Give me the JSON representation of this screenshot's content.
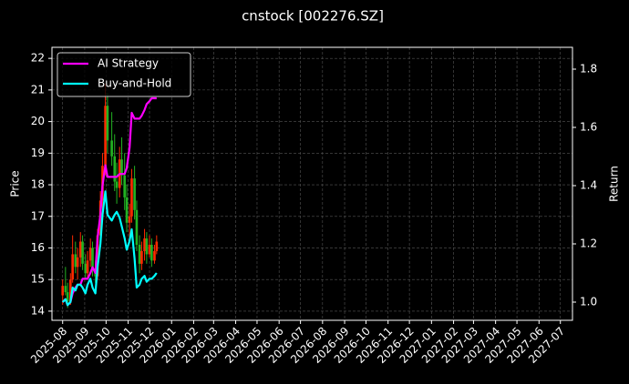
{
  "chart_data": {
    "type": "candlestick",
    "title": "cnstock [002276.SZ]",
    "y_label": "Price",
    "y2_label": "Return",
    "up_color": "#ff2a00",
    "down_color": "#22b322",
    "grid": true,
    "legend": "upper left",
    "x": [
      "2025-08-01",
      "2025-08-05",
      "2025-08-08",
      "2025-08-12",
      "2025-08-15",
      "2025-08-19",
      "2025-08-22",
      "2025-08-26",
      "2025-08-29",
      "2025-09-02",
      "2025-09-05",
      "2025-09-09",
      "2025-09-12",
      "2025-09-16",
      "2025-09-19",
      "2025-09-23",
      "2025-09-26",
      "2025-09-30",
      "2025-10-03",
      "2025-10-09",
      "2025-10-13",
      "2025-10-16",
      "2025-10-20",
      "2025-10-23",
      "2025-10-27",
      "2025-10-30",
      "2025-11-03",
      "2025-11-06",
      "2025-11-10",
      "2025-11-13",
      "2025-11-17",
      "2025-11-20",
      "2025-11-24",
      "2025-11-27",
      "2025-12-01",
      "2025-12-04",
      "2025-12-08",
      "2025-12-11"
    ],
    "open": [
      14.5,
      14.8,
      14.6,
      14.3,
      15.0,
      15.8,
      15.4,
      15.7,
      16.2,
      15.5,
      15.2,
      15.6,
      16.0,
      15.3,
      15.1,
      16.4,
      17.5,
      18.6,
      20.5,
      19.4,
      18.9,
      18.1,
      17.9,
      18.8,
      18.3,
      17.6,
      16.8,
      17.0,
      18.2,
      17.2,
      16.1,
      15.5,
      15.9,
      16.3,
      15.8,
      16.1,
      15.6,
      15.9
    ],
    "high": [
      15.0,
      15.4,
      14.9,
      15.2,
      16.4,
      16.2,
      16.0,
      16.5,
      16.4,
      15.8,
      15.9,
      16.3,
      16.2,
      15.6,
      16.6,
      17.8,
      19.0,
      21.2,
      20.9,
      20.3,
      19.6,
      18.7,
      19.2,
      19.5,
      19.0,
      18.0,
      17.4,
      18.5,
      18.6,
      17.5,
      16.4,
      16.2,
      16.6,
      16.5,
      16.4,
      16.3,
      16.1,
      16.4
    ],
    "low": [
      14.2,
      14.5,
      14.1,
      14.2,
      14.9,
      15.2,
      15.0,
      15.4,
      15.3,
      15.0,
      15.0,
      15.4,
      15.1,
      14.9,
      15.0,
      16.2,
      17.2,
      18.3,
      19.0,
      18.6,
      17.8,
      17.4,
      17.6,
      18.0,
      17.2,
      16.5,
      16.2,
      16.8,
      16.9,
      15.9,
      15.2,
      15.3,
      15.6,
      15.5,
      15.7,
      15.4,
      15.5,
      15.8
    ],
    "close": [
      14.8,
      14.6,
      14.3,
      15.0,
      15.8,
      15.4,
      15.7,
      16.2,
      15.5,
      15.2,
      15.6,
      16.0,
      15.3,
      15.1,
      16.4,
      17.5,
      18.6,
      20.5,
      19.4,
      18.9,
      18.1,
      17.9,
      18.8,
      18.3,
      17.6,
      16.8,
      17.0,
      18.2,
      17.2,
      16.1,
      15.5,
      15.9,
      16.3,
      15.8,
      16.1,
      15.6,
      15.9,
      16.2
    ],
    "series": [
      {
        "name": "AI Strategy",
        "color": "#ff00ff",
        "axis": "y2",
        "values": [
          1.0,
          1.01,
          0.99,
          1.0,
          1.03,
          1.05,
          1.06,
          1.06,
          1.08,
          1.08,
          1.08,
          1.1,
          1.12,
          1.1,
          1.22,
          1.3,
          1.4,
          1.47,
          1.43,
          1.43,
          1.43,
          1.43,
          1.44,
          1.44,
          1.44,
          1.46,
          1.53,
          1.65,
          1.63,
          1.63,
          1.63,
          1.64,
          1.66,
          1.68,
          1.69,
          1.7,
          1.7,
          1.7
        ]
      },
      {
        "name": "Buy-and-Hold",
        "color": "#00ffff",
        "axis": "y2",
        "values": [
          1.0,
          1.01,
          0.99,
          1.0,
          1.05,
          1.04,
          1.06,
          1.06,
          1.05,
          1.03,
          1.06,
          1.08,
          1.05,
          1.03,
          1.12,
          1.2,
          1.3,
          1.38,
          1.3,
          1.28,
          1.3,
          1.31,
          1.29,
          1.26,
          1.22,
          1.18,
          1.21,
          1.25,
          1.15,
          1.05,
          1.06,
          1.08,
          1.09,
          1.07,
          1.08,
          1.08,
          1.09,
          1.1
        ]
      }
    ],
    "xlim": [
      "2025-07-17",
      "2027-07-18"
    ],
    "xticks": [
      {
        "value": "2025-08-01",
        "label": "2025-08"
      },
      {
        "value": "2025-09-01",
        "label": "2025-09"
      },
      {
        "value": "2025-10-01",
        "label": "2025-10"
      },
      {
        "value": "2025-11-01",
        "label": "2025-11"
      },
      {
        "value": "2025-12-01",
        "label": "2025-12"
      },
      {
        "value": "2026-01-01",
        "label": "2026-01"
      },
      {
        "value": "2026-02-01",
        "label": "2026-02"
      },
      {
        "value": "2026-03-01",
        "label": "2026-03"
      },
      {
        "value": "2026-04-01",
        "label": "2026-04"
      },
      {
        "value": "2026-05-01",
        "label": "2026-05"
      },
      {
        "value": "2026-06-01",
        "label": "2026-06"
      },
      {
        "value": "2026-07-01",
        "label": "2026-07"
      },
      {
        "value": "2026-08-01",
        "label": "2026-08"
      },
      {
        "value": "2026-09-01",
        "label": "2026-09"
      },
      {
        "value": "2026-10-01",
        "label": "2026-10"
      },
      {
        "value": "2026-11-01",
        "label": "2026-11"
      },
      {
        "value": "2026-12-01",
        "label": "2026-12"
      },
      {
        "value": "2027-01-01",
        "label": "2027-01"
      },
      {
        "value": "2027-02-01",
        "label": "2027-02"
      },
      {
        "value": "2027-03-01",
        "label": "2027-03"
      },
      {
        "value": "2027-04-01",
        "label": "2027-04"
      },
      {
        "value": "2027-05-01",
        "label": "2027-05"
      },
      {
        "value": "2027-06-01",
        "label": "2027-06"
      },
      {
        "value": "2027-07-01",
        "label": "2027-07"
      }
    ],
    "ylim": [
      13.71,
      22.35
    ],
    "yticks": [
      14,
      15,
      16,
      17,
      18,
      19,
      20,
      21,
      22
    ],
    "y2lim": [
      0.9375,
      1.875
    ],
    "y2ticks": [
      {
        "value": 1.0,
        "label": "1.0"
      },
      {
        "value": 1.2,
        "label": "1.2"
      },
      {
        "value": 1.4,
        "label": "1.4"
      },
      {
        "value": 1.6,
        "label": "1.6"
      },
      {
        "value": 1.8,
        "label": "1.8"
      }
    ]
  }
}
